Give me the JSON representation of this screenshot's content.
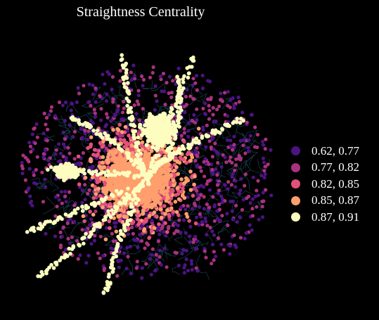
{
  "title": "Straightness Centrality",
  "background_color": "#000000",
  "street_line_color": "#18394a",
  "legend": {
    "placement": "right",
    "entries": [
      {
        "label": "0.62, 0.77",
        "color": "#4b1482"
      },
      {
        "label": "0.77, 0.82",
        "color": "#a8327d"
      },
      {
        "label": "0.82, 0.85",
        "color": "#e0517a"
      },
      {
        "label": "0.85, 0.87",
        "color": "#fe9f6d"
      },
      {
        "label": "0.87, 0.91",
        "color": "#fcfdbf"
      }
    ]
  }
}
